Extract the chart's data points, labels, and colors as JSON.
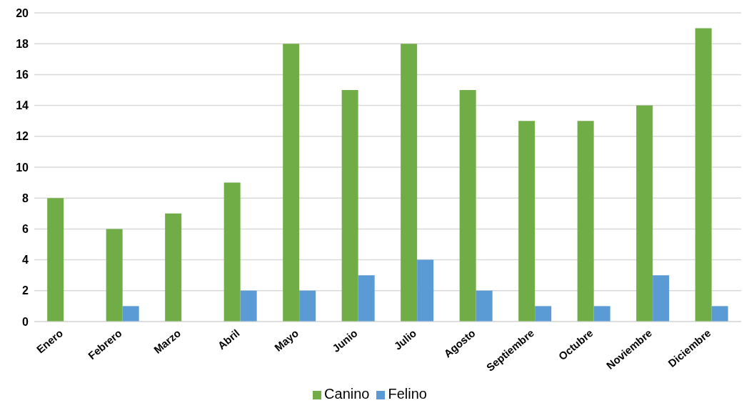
{
  "chart_data": {
    "type": "bar",
    "categories": [
      "Enero",
      "Febrero",
      "Marzo",
      "Abril",
      "Mayo",
      "Junio",
      "Julio",
      "Agosto",
      "Septiembre",
      "Octubre",
      "Noviembre",
      "Diciembre"
    ],
    "series": [
      {
        "name": "Canino",
        "color": "#70ad47",
        "values": [
          8,
          6,
          7,
          9,
          18,
          15,
          18,
          15,
          13,
          13,
          14,
          19
        ]
      },
      {
        "name": "Felino",
        "color": "#5b9bd5",
        "values": [
          0,
          1,
          0,
          2,
          2,
          3,
          4,
          2,
          1,
          1,
          3,
          1
        ]
      }
    ],
    "ylim": [
      0,
      20
    ],
    "yticks": [
      0,
      2,
      4,
      6,
      8,
      10,
      12,
      14,
      16,
      18,
      20
    ],
    "grid": "y",
    "legend": "bottom"
  }
}
